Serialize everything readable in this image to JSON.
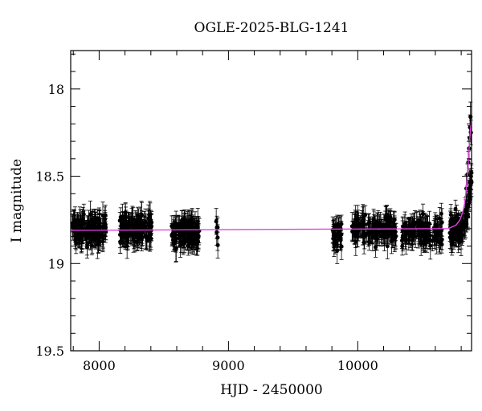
{
  "chart_data": {
    "type": "scatter",
    "title": "OGLE-2025-BLG-1241",
    "xlabel": "HJD - 2450000",
    "ylabel": "I magnitude",
    "xlim": [
      7780,
      10880
    ],
    "ylim": [
      19.5,
      17.78
    ],
    "y_inverted": true,
    "x_ticks": [
      8000,
      9000,
      10000
    ],
    "x_tick_labels": [
      "8000",
      "9000",
      "10000"
    ],
    "y_ticks": [
      18,
      18.5,
      19,
      19.5
    ],
    "y_tick_labels": [
      "18",
      "18.5",
      "19",
      "19.5"
    ],
    "grid": false,
    "legend": "none",
    "colors": {
      "points": "#000000",
      "model": "#e040e0"
    },
    "model_curve": {
      "baseline": 18.81,
      "x": [
        7780,
        10700,
        10760,
        10790,
        10810,
        10825,
        10835,
        10845,
        10852,
        10858,
        10863,
        10868,
        10872,
        10876,
        10880
      ],
      "y": [
        18.81,
        18.8,
        18.78,
        18.75,
        18.71,
        18.66,
        18.6,
        18.52,
        18.45,
        18.38,
        18.32,
        18.27,
        18.23,
        18.2,
        18.17
      ]
    },
    "observing_seasons": [
      {
        "start": 7790,
        "end": 8055,
        "mean_mag": 18.81,
        "count": 150
      },
      {
        "start": 8160,
        "end": 8410,
        "mean_mag": 18.8,
        "count": 150
      },
      {
        "start": 8555,
        "end": 8775,
        "mean_mag": 18.82,
        "count": 150
      },
      {
        "start": 8905,
        "end": 8925,
        "mean_mag": 18.84,
        "count": 6
      },
      {
        "start": 9805,
        "end": 9875,
        "mean_mag": 18.83,
        "count": 40
      },
      {
        "start": 9955,
        "end": 10300,
        "mean_mag": 18.8,
        "count": 150
      },
      {
        "start": 10340,
        "end": 10660,
        "mean_mag": 18.82,
        "count": 140
      },
      {
        "start": 10710,
        "end": 10880,
        "mean_mag": 18.81,
        "count": 120
      }
    ],
    "peak_points": [
      {
        "x": 10840,
        "y": 18.57
      },
      {
        "x": 10848,
        "y": 18.49
      },
      {
        "x": 10855,
        "y": 18.42
      },
      {
        "x": 10861,
        "y": 18.34
      },
      {
        "x": 10865,
        "y": 18.28
      },
      {
        "x": 10868,
        "y": 18.22
      },
      {
        "x": 10872,
        "y": 18.16
      },
      {
        "x": 10875,
        "y": 18.25
      }
    ]
  }
}
